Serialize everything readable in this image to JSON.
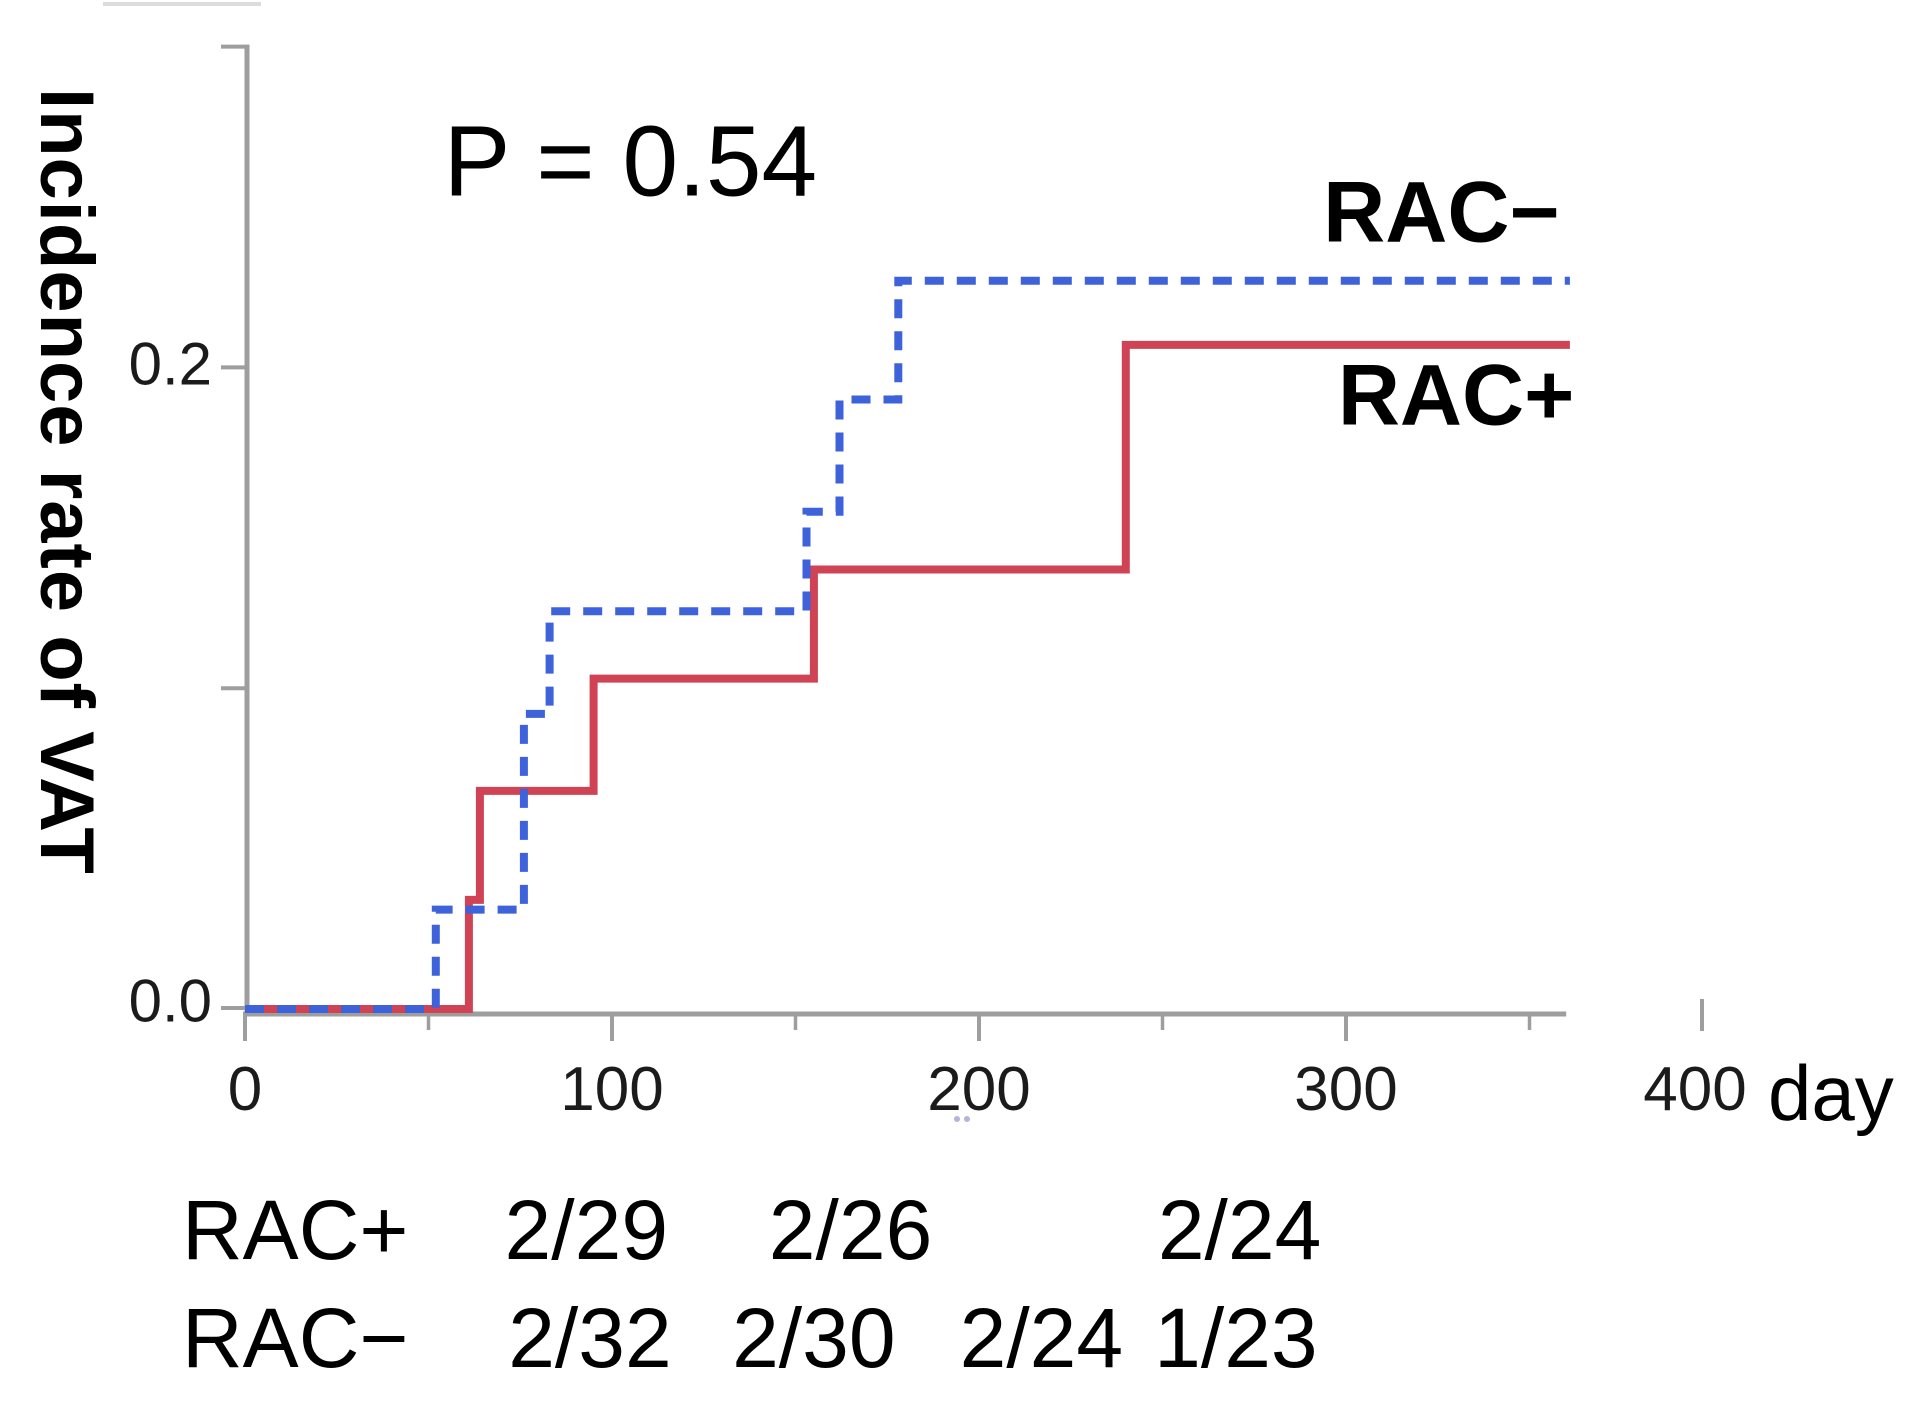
{
  "figure": {
    "background": "#ffffff",
    "axis_color": "#9e9e9e",
    "tick_label_color": "#1b1b1b",
    "text_color": "#000000",
    "p_annotation": {
      "text": "P = 0.54",
      "x_day": 105,
      "y_value": 0.264
    },
    "series_annotations": [
      {
        "text": "RAC−",
        "x_day": 326,
        "y_value": 0.248
      },
      {
        "text": "RAC+",
        "x_day": 330,
        "y_value": 0.191
      }
    ],
    "y_axis": {
      "title": "Incidence rate of VAT",
      "range": [
        0,
        0.3
      ],
      "ticks": [
        {
          "value": 0,
          "label": "0.0"
        },
        {
          "value": 0.1,
          "label": ""
        },
        {
          "value": 0.2,
          "label": "0.2"
        },
        {
          "value": 0.3,
          "label": ""
        }
      ]
    },
    "x_axis": {
      "unit_label": "day",
      "range": [
        0,
        430
      ],
      "axis_end_day": 360,
      "major_ticks": [
        {
          "value": 0,
          "label": "0"
        },
        {
          "value": 100,
          "label": "100"
        },
        {
          "value": 200,
          "label": "200"
        },
        {
          "value": 300,
          "label": "300"
        }
      ],
      "minor_ticks": [
        50,
        150,
        250,
        350
      ],
      "detached_tick": {
        "value": 400,
        "label": "400"
      }
    }
  },
  "chart_data": {
    "type": "line",
    "line_type": "step-after",
    "title": "",
    "xlabel": "day",
    "ylabel": "Incidence rate of VAT",
    "xlim": [
      0,
      430
    ],
    "ylim": [
      0,
      0.3
    ],
    "grid": false,
    "legend_position": "labels-right-of-curves",
    "annotations": [
      {
        "text": "P = 0.54"
      }
    ],
    "series": [
      {
        "name": "RAC−",
        "color": "#3e62d9",
        "style": "dashed",
        "group_size": 32,
        "x": [
          0,
          52,
          76,
          83,
          153,
          162,
          178,
          361
        ],
        "y": [
          0,
          0.031,
          0.092,
          0.124,
          0.155,
          0.19,
          0.227,
          0.227
        ]
      },
      {
        "name": "RAC+",
        "color": "#d04354",
        "style": "solid",
        "group_size": 29,
        "x": [
          0,
          61,
          64,
          95,
          155,
          240,
          361
        ],
        "y": [
          0,
          0.034,
          0.068,
          0.103,
          0.137,
          0.207,
          0.207
        ]
      }
    ]
  },
  "risk_table": {
    "rows": [
      {
        "label": "RAC+",
        "entries": [
          {
            "text": "2/29",
            "x_day": 93
          },
          {
            "text": "2/26",
            "x_day": 165
          },
          {
            "text": "2/24",
            "x_day": 271
          }
        ]
      },
      {
        "label": "RAC−",
        "entries": [
          {
            "text": "2/32",
            "x_day": 94
          },
          {
            "text": "2/30",
            "x_day": 155
          },
          {
            "text": "2/24",
            "x_day": 217
          },
          {
            "text": "1/23",
            "x_day": 270
          }
        ]
      }
    ]
  }
}
